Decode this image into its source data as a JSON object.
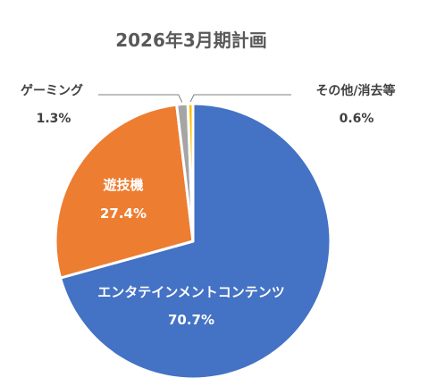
{
  "chart_data": {
    "type": "pie",
    "title": "2026年3月期計画",
    "start_angle_deg": 0,
    "direction": "clockwise",
    "slices": [
      {
        "name": "エンタテインメントコンテンツ",
        "value": 70.7,
        "value_label": "70.7%",
        "color": "#4472C4",
        "label_position": "inside"
      },
      {
        "name": "遊技機",
        "value": 27.4,
        "value_label": "27.4%",
        "color": "#ED7D31",
        "label_position": "inside"
      },
      {
        "name": "ゲーミング",
        "value": 1.3,
        "value_label": "1.3%",
        "color": "#A5A5A5",
        "label_position": "outside-left"
      },
      {
        "name": "その他/消去等",
        "value": 0.6,
        "value_label": "0.6%",
        "color": "#FFC000",
        "label_position": "outside-right"
      }
    ],
    "slice_border_color": "#ffffff",
    "leader_line_color": "#808080"
  }
}
